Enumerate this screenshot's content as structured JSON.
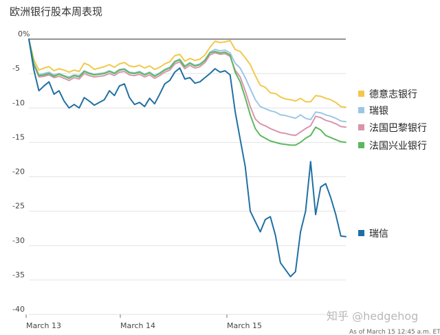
{
  "chart_data": {
    "type": "line",
    "title": "欧洲银行股本周表现",
    "ylim": [
      -40,
      0
    ],
    "y_ticks": [
      "0%",
      "-5",
      "-10",
      "-15",
      "-20",
      "-25",
      "-30",
      "-35",
      "-40"
    ],
    "x_ticks": [
      "March 13",
      "March 14",
      "March 15"
    ],
    "grid": true,
    "legend_placement": "right",
    "series": [
      {
        "name": "德意志银行",
        "color": "#f2c84b",
        "values": [
          0,
          -3,
          -4.5,
          -4.2,
          -4,
          -4.6,
          -4.3,
          -4.5,
          -4.8,
          -4.5,
          -4.7,
          -3.5,
          -3.8,
          -4.4,
          -4.2,
          -4,
          -3.7,
          -4.1,
          -3.6,
          -3.4,
          -3.9,
          -4,
          -3.8,
          -4.2,
          -3.9,
          -4.4,
          -4.1,
          -3.6,
          -3.3,
          -2.4,
          -2.2,
          -3.2,
          -2.8,
          -3.1,
          -2.9,
          -2.3,
          -1.2,
          -0.3,
          -0.5,
          -0.4,
          -0.2,
          -1.5,
          -1.8,
          -2.7,
          -3.7,
          -5.3,
          -6.7,
          -7,
          -7.8,
          -7.9,
          -8.4,
          -8.7,
          -8.8,
          -9,
          -8.6,
          -9.1,
          -9.1,
          -8.2,
          -8.3,
          -8.6,
          -8.8,
          -9.2,
          -9.8,
          -9.9
        ]
      },
      {
        "name": "瑞银",
        "color": "#9cc6e8",
        "values": [
          0,
          -3.5,
          -5.2,
          -5,
          -4.8,
          -5.2,
          -5,
          -5.3,
          -5.5,
          -5.2,
          -5.3,
          -4.6,
          -4.9,
          -5.1,
          -5,
          -4.9,
          -4.6,
          -4.9,
          -4.4,
          -4.3,
          -4.8,
          -4.9,
          -4.7,
          -5.1,
          -4.8,
          -5.3,
          -4.9,
          -4.4,
          -4.1,
          -3.2,
          -2.9,
          -3.9,
          -3.4,
          -3.8,
          -3.6,
          -3,
          -1.9,
          -1.5,
          -1.7,
          -1.6,
          -2,
          -3.5,
          -4.2,
          -5.6,
          -7.2,
          -8.8,
          -9.8,
          -10.1,
          -10.4,
          -10.6,
          -11,
          -11.1,
          -11.3,
          -11.5,
          -11,
          -11.5,
          -11.7,
          -10.6,
          -10.7,
          -11,
          -11.2,
          -11.5,
          -11.9,
          -12
        ]
      },
      {
        "name": "法国巴黎银行",
        "color": "#d994ad",
        "values": [
          0,
          -3.8,
          -5.5,
          -5.4,
          -5.2,
          -5.6,
          -5.4,
          -5.7,
          -6,
          -5.6,
          -5.8,
          -5,
          -5.3,
          -5.5,
          -5.4,
          -5.3,
          -5,
          -5.3,
          -4.8,
          -4.7,
          -5.2,
          -5.3,
          -5.1,
          -5.5,
          -5.2,
          -5.7,
          -5.3,
          -4.8,
          -4.5,
          -3.6,
          -3.3,
          -4.3,
          -3.8,
          -4.2,
          -4,
          -3.4,
          -2.3,
          -2,
          -2.2,
          -2.1,
          -2.5,
          -4.5,
          -5.5,
          -7.5,
          -9.8,
          -11.6,
          -12.3,
          -12.6,
          -13,
          -13.3,
          -13.6,
          -13.7,
          -13.9,
          -14,
          -13.5,
          -13,
          -12.6,
          -11.2,
          -11.4,
          -11.8,
          -12,
          -12.3,
          -12.7,
          -12.8
        ]
      },
      {
        "name": "法国兴业银行",
        "color": "#5cb85c",
        "values": [
          0,
          -3.6,
          -5.3,
          -5.2,
          -5,
          -5.4,
          -5.1,
          -5.4,
          -5.7,
          -5.3,
          -5.5,
          -4.7,
          -5,
          -5.2,
          -5.1,
          -5,
          -4.7,
          -5,
          -4.5,
          -4.4,
          -4.9,
          -5,
          -4.8,
          -5.2,
          -4.9,
          -5.4,
          -5,
          -4.5,
          -4.2,
          -3.3,
          -3,
          -4,
          -3.5,
          -3.9,
          -3.7,
          -3.1,
          -2,
          -1.8,
          -2,
          -1.9,
          -2.3,
          -4.8,
          -6.2,
          -8.5,
          -11,
          -13,
          -14,
          -14.4,
          -14.8,
          -15,
          -15.2,
          -15.3,
          -15.4,
          -15.4,
          -15,
          -14.4,
          -14,
          -12.8,
          -13.2,
          -14,
          -14.3,
          -14.6,
          -14.9,
          -15
        ]
      },
      {
        "name": "瑞信",
        "color": "#1f6fa3",
        "values": [
          0,
          -4.5,
          -7.5,
          -6.8,
          -6.2,
          -8,
          -7.5,
          -9,
          -10,
          -9.5,
          -10,
          -8.5,
          -9,
          -9.6,
          -9.2,
          -8.8,
          -7.5,
          -8.2,
          -6.8,
          -6.5,
          -8.5,
          -9.5,
          -9.2,
          -9.8,
          -8.6,
          -9.4,
          -8,
          -6.5,
          -6,
          -4.8,
          -4.2,
          -5.8,
          -5.6,
          -6.4,
          -6.2,
          -5.6,
          -5,
          -4.3,
          -4.8,
          -4.6,
          -5.2,
          -10.5,
          -14.5,
          -18.5,
          -25,
          -26.5,
          -28,
          -26.2,
          -25.8,
          -28.5,
          -32.5,
          -33.5,
          -34.5,
          -33.8,
          -28,
          -25,
          -17.8,
          -25.5,
          -21.5,
          -21,
          -23,
          -25.5,
          -28.6,
          -28.7
        ]
      }
    ]
  },
  "watermark": "知乎 @hedgehog",
  "footnote": "As of March 15 12:45 a.m. ET"
}
